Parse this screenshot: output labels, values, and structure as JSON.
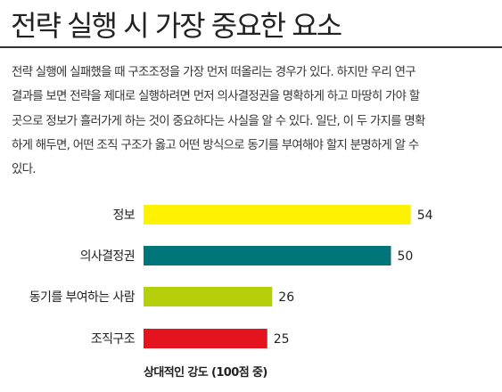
{
  "title": "전략 실행 시 가장 중요한 요소",
  "body_lines": [
    "전략 실행에 실패했을 때 구조조정을 가장 먼저 떠올리는 경우가 있다. 하지만 우리 연구",
    "결과를 보면 전략을 제대로 실행하려면 먼저 의사결정권을 명확하게 하고 마땅히 가야 할",
    "곳으로 정보가 흘러가게 하는 것이 중요하다는 사실을 알 수 있다. 일단, 이 두 가지를 명확",
    "하게 해두면, 어떤 조직 구조가 옳고 어떤 방식으로 동기를 부여해야 할지 분명하게 알 수",
    "있다."
  ],
  "chart_data": {
    "type": "bar",
    "orientation": "horizontal",
    "categories": [
      "정보",
      "의사결정권",
      "동기를 부여하는 사람",
      "조직구조"
    ],
    "values": [
      54,
      50,
      26,
      25
    ],
    "colors": [
      "#fff200",
      "#00757a",
      "#b5cf0a",
      "#e4141f"
    ],
    "xlabel": "상대적인 강도 (100점 중)"
  }
}
